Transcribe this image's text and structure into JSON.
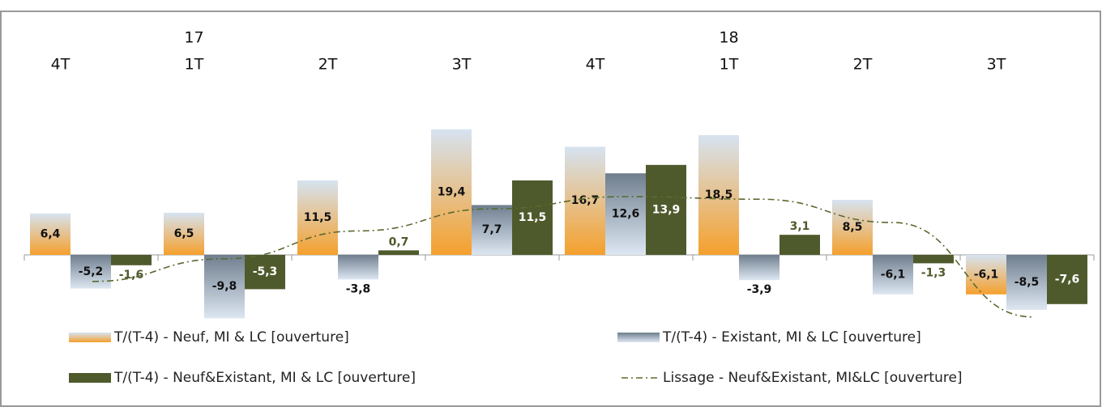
{
  "chart_data": {
    "type": "bar",
    "categories": [
      "4T",
      "1T",
      "2T",
      "3T",
      "4T",
      "1T",
      "2T",
      "3T"
    ],
    "years": [
      null,
      "17",
      null,
      null,
      null,
      "18",
      null,
      null
    ],
    "ylim": [
      -12,
      20
    ],
    "series": [
      {
        "name": "T/(T-4) - Neuf, MI & LC  [ouverture]",
        "color": "#f5a02c",
        "color2": "#d6e3f1",
        "values": [
          6.4,
          6.5,
          11.5,
          19.4,
          16.7,
          18.5,
          8.5,
          -6.1
        ],
        "value_labels": [
          "6,4",
          "6,5",
          "11,5",
          "19,4",
          "16,7",
          "18,5",
          "8,5",
          "-6,1"
        ]
      },
      {
        "name": "T/(T-4) - Existant, MI & LC  [ouverture]",
        "color": "#6f7e8e",
        "color2": "#dde7f2",
        "values": [
          -5.2,
          -9.8,
          -3.8,
          7.7,
          12.6,
          -3.9,
          -6.1,
          -8.5
        ],
        "value_labels": [
          "-5,2",
          "-9,8",
          "-3,8",
          "7,7",
          "12,6",
          "-3,9",
          "-6,1",
          "-8,5"
        ]
      },
      {
        "name": "T/(T-4) - Neuf&Existant, MI & LC  [ouverture]",
        "color": "#4f5a2c",
        "values": [
          -1.6,
          -5.3,
          0.7,
          11.5,
          13.9,
          3.1,
          -1.3,
          -7.6
        ],
        "value_labels": [
          "-1,6",
          "-5,3",
          "0,7",
          "11,5",
          "13,9",
          "3,1",
          "-1,3",
          "-7,6"
        ]
      },
      {
        "name": "Lissage - Neuf&Existant, MI&LC [ouverture]",
        "color": "#5a6b30",
        "line": true,
        "values": [
          -4.1,
          -0.6,
          3.7,
          7.1,
          9.0,
          8.6,
          5.0,
          -9.6
        ]
      }
    ]
  }
}
